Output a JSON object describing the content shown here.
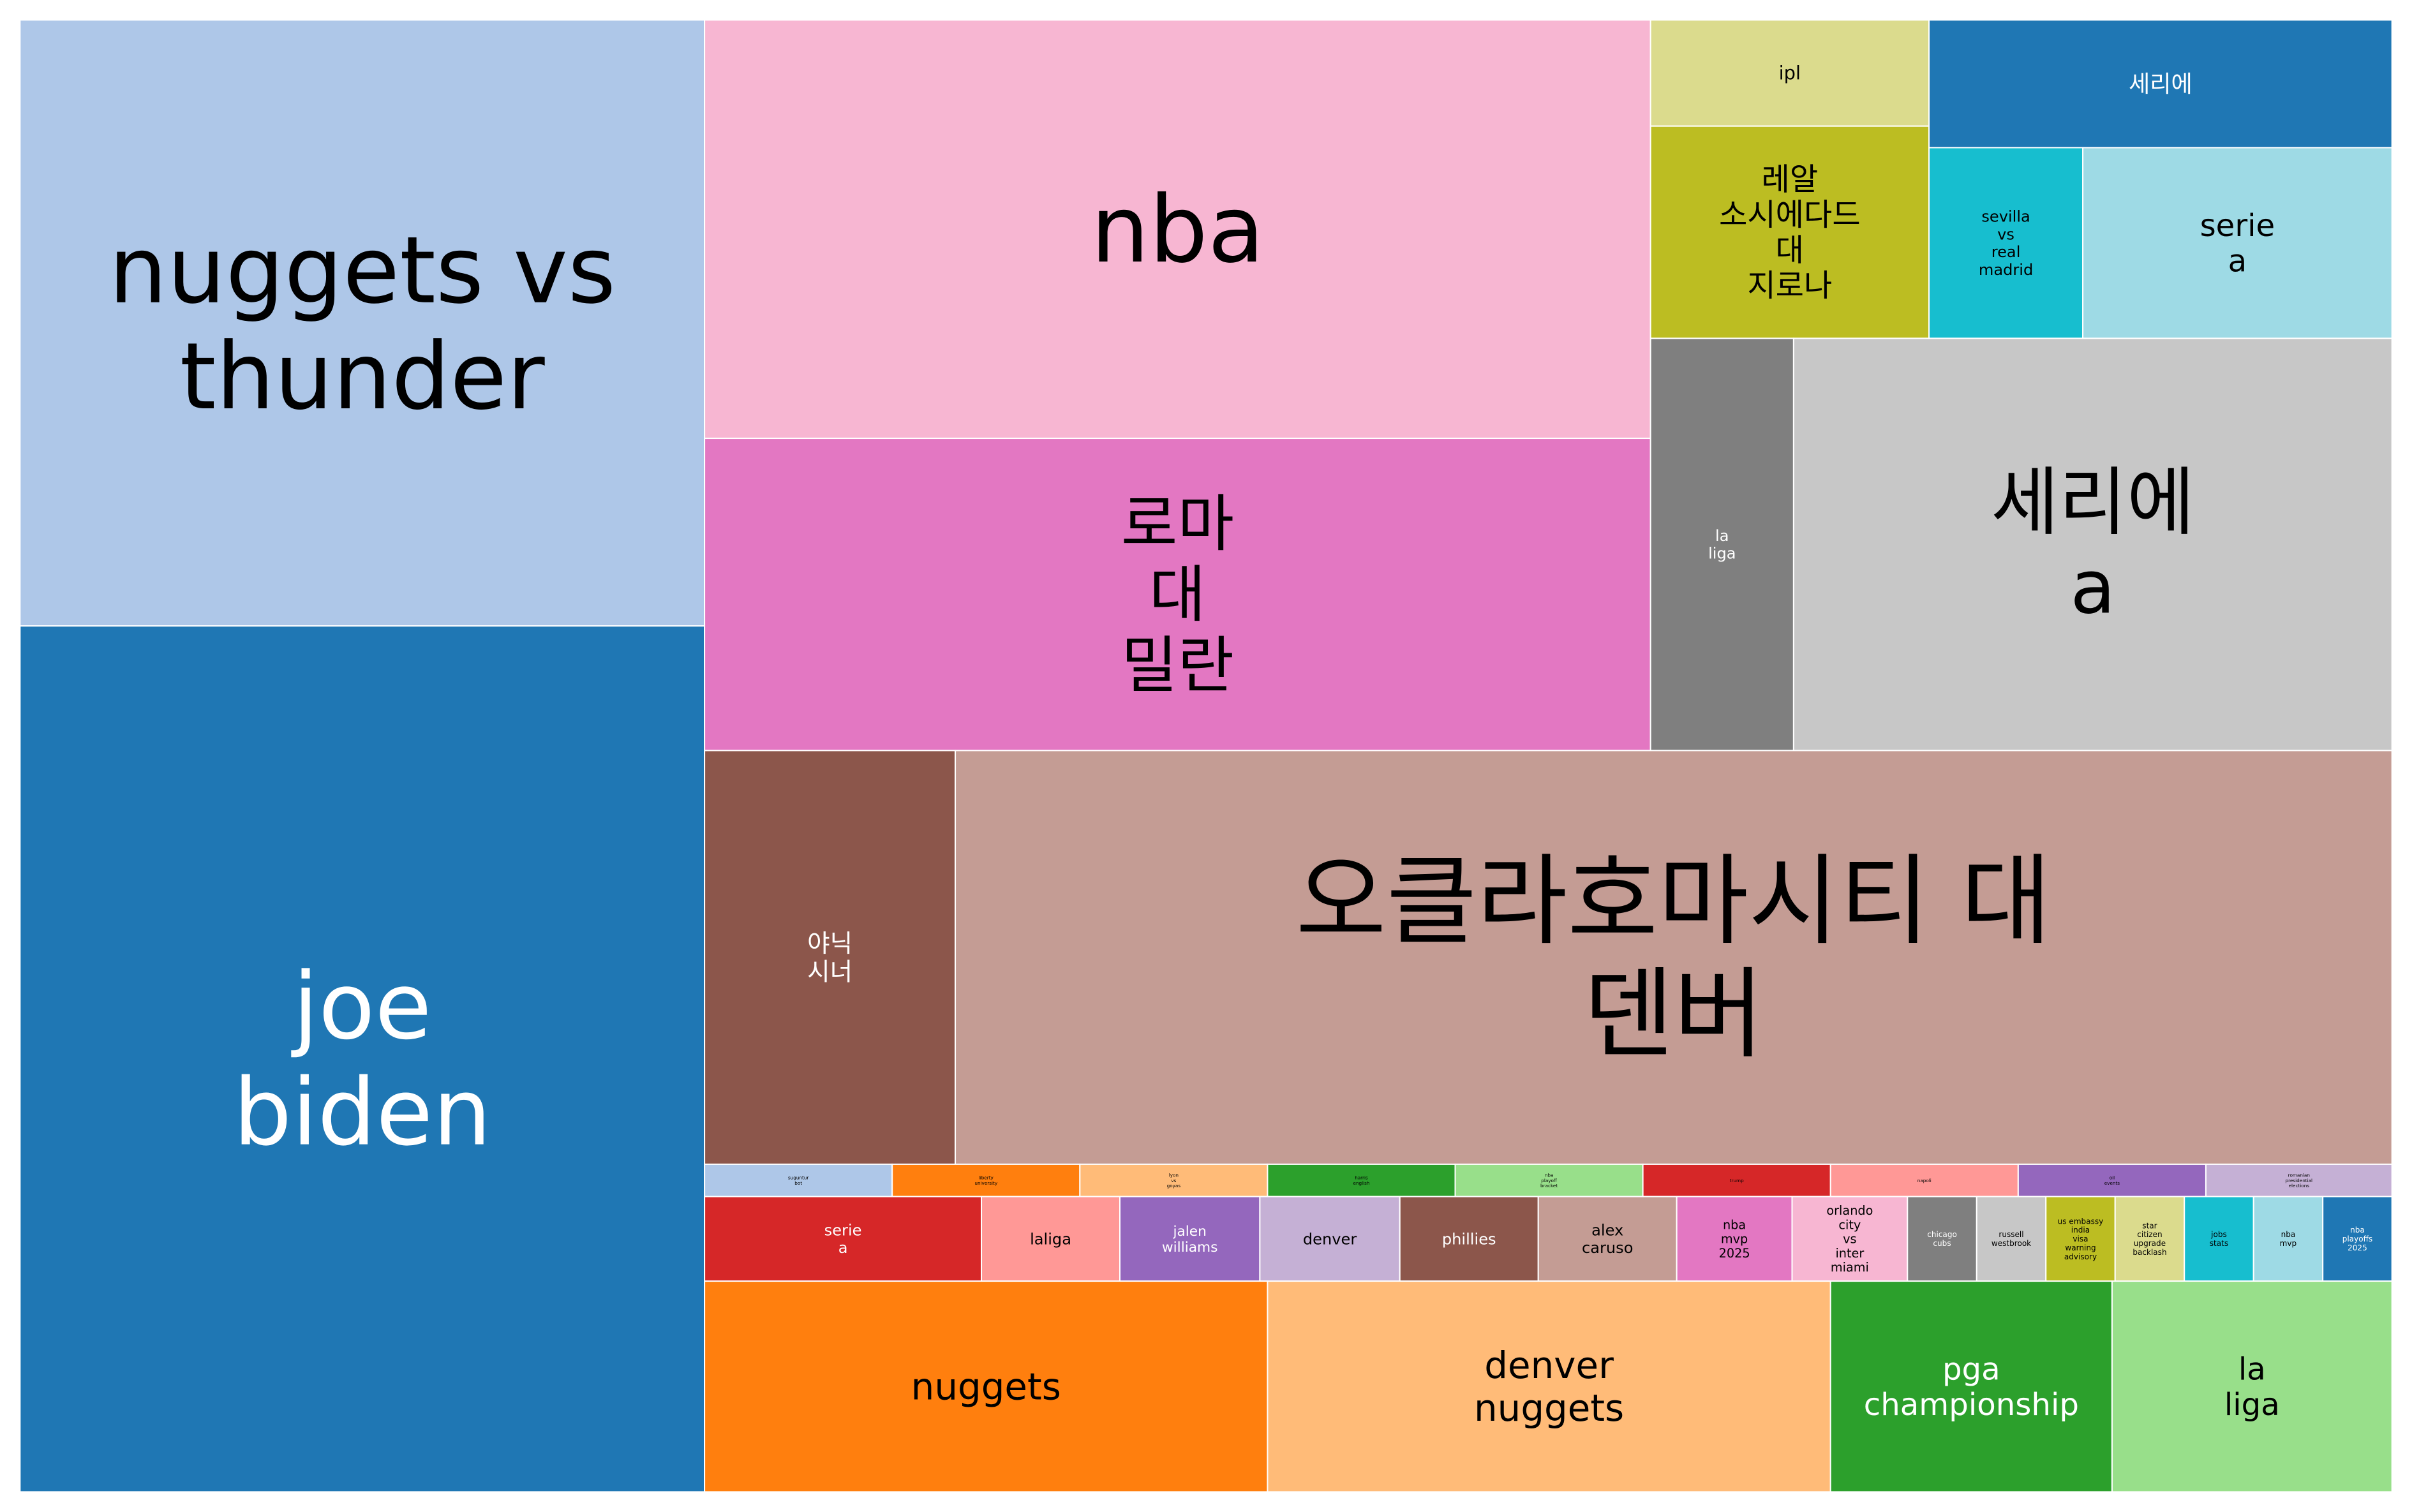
{
  "chart_data": {
    "type": "treemap",
    "title": "",
    "items": [
      {
        "label": "nuggets vs thunder",
        "lines": [
          "nuggets vs",
          "thunder"
        ],
        "color": "#aec7e8",
        "text_color": "#000000"
      },
      {
        "label": "joe biden",
        "lines": [
          "joe",
          "biden"
        ],
        "color": "#1f77b4",
        "text_color": "#ffffff"
      },
      {
        "label": "nba",
        "lines": [
          "nba"
        ],
        "color": "#f7b6d2",
        "text_color": "#000000"
      },
      {
        "label": "로마 대 밀란",
        "lines": [
          "로마",
          "대",
          "밀란"
        ],
        "color": "#e377c2",
        "text_color": "#000000"
      },
      {
        "label": "ipl",
        "lines": [
          "ipl"
        ],
        "color": "#dbdb8d",
        "text_color": "#000000"
      },
      {
        "label": "레알 소시에다드 대 지로나",
        "lines": [
          "레알",
          "소시에다드",
          "대",
          "지로나"
        ],
        "color": "#bcbd22",
        "text_color": "#000000"
      },
      {
        "label": "세리에",
        "lines": [
          "세리에"
        ],
        "color": "#1f77b4",
        "text_color": "#ffffff"
      },
      {
        "label": "sevilla vs real madrid",
        "lines": [
          "sevilla",
          "vs",
          "real",
          "madrid"
        ],
        "color": "#17becf",
        "text_color": "#000000"
      },
      {
        "label": "serie a",
        "lines": [
          "serie",
          "a"
        ],
        "color": "#9edae5",
        "text_color": "#000000"
      },
      {
        "label": "la liga",
        "lines": [
          "la",
          "liga"
        ],
        "color": "#7f7f7f",
        "text_color": "#ffffff"
      },
      {
        "label": "세리에 a",
        "lines": [
          "세리에",
          "a"
        ],
        "color": "#c7c7c7",
        "text_color": "#000000"
      },
      {
        "label": "야닉 시너",
        "lines": [
          "야닉",
          "시너"
        ],
        "color": "#8c564b",
        "text_color": "#ffffff"
      },
      {
        "label": "오클라호마시티 대 덴버",
        "lines": [
          "오클라호마시티 대",
          "덴버"
        ],
        "color": "#c49c94",
        "text_color": "#000000"
      },
      {
        "label": "suguntur bot",
        "lines": [
          "suguntur",
          "bot"
        ],
        "color": "#aec7e8",
        "text_color": "#000000"
      },
      {
        "label": "liberty university",
        "lines": [
          "liberty",
          "university"
        ],
        "color": "#ff7f0e",
        "text_color": "#000000"
      },
      {
        "label": "lyon vs goyas",
        "lines": [
          "lyon",
          "vs",
          "goyas"
        ],
        "color": "#ffbb78",
        "text_color": "#000000"
      },
      {
        "label": "harris english",
        "lines": [
          "harris",
          "english"
        ],
        "color": "#2ca02c",
        "text_color": "#000000"
      },
      {
        "label": "nba playoff bracket",
        "lines": [
          "nba",
          "playoff",
          "bracket"
        ],
        "color": "#98df8a",
        "text_color": "#000000"
      },
      {
        "label": "trump",
        "lines": [
          "trump"
        ],
        "color": "#d62728",
        "text_color": "#000000"
      },
      {
        "label": "napoli",
        "lines": [
          "napoli"
        ],
        "color": "#ff9896",
        "text_color": "#000000"
      },
      {
        "label": "oil events",
        "lines": [
          "oil",
          "events"
        ],
        "color": "#9467bd",
        "text_color": "#000000"
      },
      {
        "label": "romanian presidential elections",
        "lines": [
          "romanian",
          "presidential",
          "elections"
        ],
        "color": "#c5b0d5",
        "text_color": "#000000"
      },
      {
        "label": "serie a",
        "lines": [
          "serie",
          "a"
        ],
        "color": "#d62728",
        "text_color": "#ffffff"
      },
      {
        "label": "laliga",
        "lines": [
          "laliga"
        ],
        "color": "#ff9896",
        "text_color": "#000000"
      },
      {
        "label": "jalen williams",
        "lines": [
          "jalen",
          "williams"
        ],
        "color": "#9467bd",
        "text_color": "#ffffff"
      },
      {
        "label": "denver",
        "lines": [
          "denver"
        ],
        "color": "#c5b0d5",
        "text_color": "#000000"
      },
      {
        "label": "phillies",
        "lines": [
          "phillies"
        ],
        "color": "#8c564b",
        "text_color": "#ffffff"
      },
      {
        "label": "alex caruso",
        "lines": [
          "alex",
          "caruso"
        ],
        "color": "#c49c94",
        "text_color": "#000000"
      },
      {
        "label": "nba mvp 2025",
        "lines": [
          "nba",
          "mvp",
          "2025"
        ],
        "color": "#e377c2",
        "text_color": "#000000"
      },
      {
        "label": "orlando city vs inter miami",
        "lines": [
          "orlando",
          "city",
          "vs",
          "inter",
          "miami"
        ],
        "color": "#f7b6d2",
        "text_color": "#000000"
      },
      {
        "label": "chicago cubs",
        "lines": [
          "chicago",
          "cubs"
        ],
        "color": "#7f7f7f",
        "text_color": "#ffffff"
      },
      {
        "label": "russell westbrook",
        "lines": [
          "russell",
          "westbrook"
        ],
        "color": "#c7c7c7",
        "text_color": "#000000"
      },
      {
        "label": "us embassy india visa warning advisory",
        "lines": [
          "us embassy",
          "india",
          "visa",
          "warning",
          "advisory"
        ],
        "color": "#bcbd22",
        "text_color": "#000000"
      },
      {
        "label": "star citizen upgrade backlash",
        "lines": [
          "star",
          "citizen",
          "upgrade",
          "backlash"
        ],
        "color": "#dbdb8d",
        "text_color": "#000000"
      },
      {
        "label": "jobs stats",
        "lines": [
          "jobs",
          "stats"
        ],
        "color": "#17becf",
        "text_color": "#000000"
      },
      {
        "label": "nba mvp",
        "lines": [
          "nba",
          "mvp"
        ],
        "color": "#9edae5",
        "text_color": "#000000"
      },
      {
        "label": "nba playoffs 2025",
        "lines": [
          "nba",
          "playoffs",
          "2025"
        ],
        "color": "#1f77b4",
        "text_color": "#ffffff"
      },
      {
        "label": "nuggets",
        "lines": [
          "nuggets"
        ],
        "color": "#ff7f0e",
        "text_color": "#000000"
      },
      {
        "label": "denver nuggets",
        "lines": [
          "denver",
          "nuggets"
        ],
        "color": "#ffbb78",
        "text_color": "#000000"
      },
      {
        "label": "pga championship",
        "lines": [
          "pga",
          "championship"
        ],
        "color": "#2ca02c",
        "text_color": "#ffffff"
      },
      {
        "label": "la liga",
        "lines": [
          "la",
          "liga"
        ],
        "color": "#98df8a",
        "text_color": "#000000"
      }
    ]
  }
}
